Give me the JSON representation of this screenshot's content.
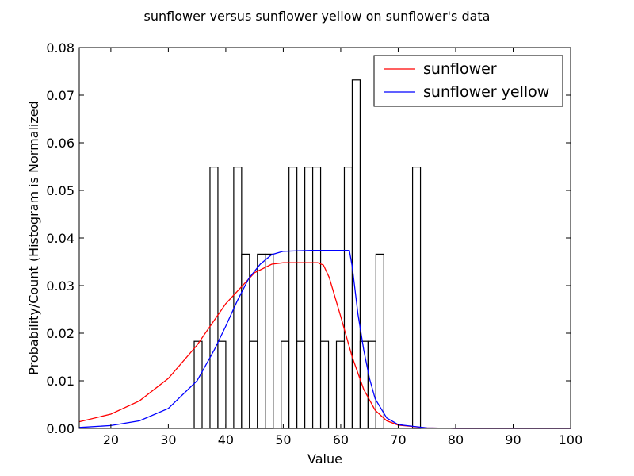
{
  "chart_data": {
    "type": "histogram",
    "title": "sunflower versus sunflower yellow on sunflower's data",
    "xlabel": "Value",
    "ylabel": "Probability/Count (Histogram is Normalized",
    "xlim": [
      14.5,
      100
    ],
    "ylim": [
      0,
      0.08
    ],
    "x_ticks": [
      20,
      30,
      40,
      50,
      60,
      70,
      80,
      90,
      100
    ],
    "y_ticks": [
      0.0,
      0.01,
      0.02,
      0.03,
      0.04,
      0.05,
      0.06,
      0.07,
      0.08
    ],
    "x_tick_labels": [
      "20",
      "30",
      "40",
      "50",
      "60",
      "70",
      "80",
      "90",
      "100"
    ],
    "y_tick_labels": [
      "0.00",
      "0.01",
      "0.02",
      "0.03",
      "0.04",
      "0.05",
      "0.06",
      "0.07",
      "0.08"
    ],
    "bin_width": 1.375,
    "bins": [
      {
        "start": 34.5,
        "height": 0.0183
      },
      {
        "start": 35.875,
        "height": 0
      },
      {
        "start": 37.25,
        "height": 0.0549
      },
      {
        "start": 38.625,
        "height": 0.0183
      },
      {
        "start": 40.0,
        "height": 0
      },
      {
        "start": 41.375,
        "height": 0.0549
      },
      {
        "start": 42.75,
        "height": 0.0366
      },
      {
        "start": 44.125,
        "height": 0.0183
      },
      {
        "start": 45.5,
        "height": 0.0366
      },
      {
        "start": 46.875,
        "height": 0.0366
      },
      {
        "start": 48.25,
        "height": 0
      },
      {
        "start": 49.625,
        "height": 0.0183
      },
      {
        "start": 51.0,
        "height": 0.0549
      },
      {
        "start": 52.375,
        "height": 0.0183
      },
      {
        "start": 53.75,
        "height": 0.0549
      },
      {
        "start": 55.125,
        "height": 0.0549
      },
      {
        "start": 56.5,
        "height": 0.0183
      },
      {
        "start": 57.875,
        "height": 0
      },
      {
        "start": 59.25,
        "height": 0.0183
      },
      {
        "start": 60.625,
        "height": 0.0549
      },
      {
        "start": 62.0,
        "height": 0.0732
      },
      {
        "start": 63.375,
        "height": 0.0183
      },
      {
        "start": 64.75,
        "height": 0.0183
      },
      {
        "start": 66.125,
        "height": 0.0366
      },
      {
        "start": 72.5,
        "height": 0.0549
      }
    ],
    "series": [
      {
        "name": "sunflower",
        "color": "#ff0000",
        "points": [
          [
            14.5,
            0.0014
          ],
          [
            20,
            0.003
          ],
          [
            25,
            0.0058
          ],
          [
            30,
            0.0105
          ],
          [
            35,
            0.0175
          ],
          [
            40,
            0.0262
          ],
          [
            45,
            0.0327
          ],
          [
            48,
            0.0345
          ],
          [
            50,
            0.0348
          ],
          [
            52,
            0.0348
          ],
          [
            54,
            0.0348
          ],
          [
            56,
            0.0348
          ],
          [
            57,
            0.0343
          ],
          [
            58,
            0.0317
          ],
          [
            60,
            0.0235
          ],
          [
            62,
            0.015
          ],
          [
            64,
            0.0082
          ],
          [
            66,
            0.0038
          ],
          [
            68,
            0.0016
          ],
          [
            70,
            0.0007
          ],
          [
            75,
            0.0001
          ],
          [
            80,
            0.0
          ],
          [
            100,
            0.0
          ]
        ]
      },
      {
        "name": "sunflower yellow",
        "color": "#0000ff",
        "points": [
          [
            14.5,
            0.0002
          ],
          [
            20,
            0.0006
          ],
          [
            25,
            0.0016
          ],
          [
            30,
            0.0042
          ],
          [
            35,
            0.01
          ],
          [
            38,
            0.0165
          ],
          [
            40,
            0.0215
          ],
          [
            42,
            0.0268
          ],
          [
            44,
            0.0315
          ],
          [
            46,
            0.0345
          ],
          [
            48,
            0.0365
          ],
          [
            50,
            0.0372
          ],
          [
            55,
            0.0374
          ],
          [
            60,
            0.0374
          ],
          [
            61.5,
            0.0374
          ],
          [
            62,
            0.034
          ],
          [
            63,
            0.024
          ],
          [
            64,
            0.0165
          ],
          [
            65,
            0.0105
          ],
          [
            66,
            0.0062
          ],
          [
            68,
            0.0022
          ],
          [
            70,
            0.0008
          ],
          [
            75,
            0.0001
          ],
          [
            80,
            0.0
          ],
          [
            100,
            0.0
          ]
        ]
      }
    ],
    "legend": {
      "placement": "top-right",
      "entries": [
        "sunflower",
        "sunflower yellow"
      ]
    }
  }
}
